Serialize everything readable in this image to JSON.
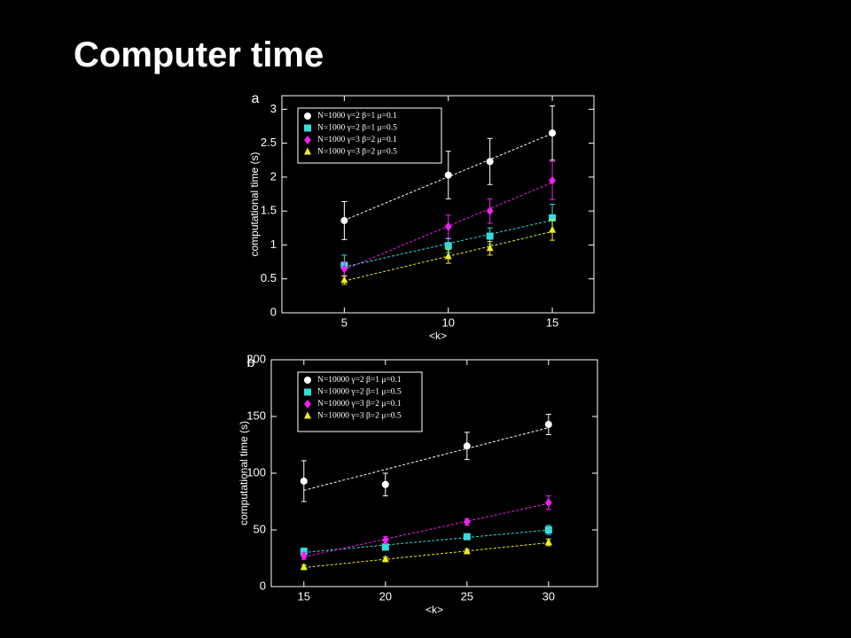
{
  "title": "Computer time",
  "chart_data": [
    {
      "type": "scatter",
      "panel": "a",
      "xlabel": "<k>",
      "ylabel": "computational time (s)",
      "xlim": [
        2,
        17
      ],
      "ylim": [
        0,
        3.2
      ],
      "xticks": [
        5,
        10,
        15
      ],
      "yticks": [
        0,
        0.5,
        1,
        1.5,
        2,
        2.5,
        3
      ],
      "trendline": true,
      "series": [
        {
          "name": "N=1000  γ=2  β=1  μ=0.1",
          "color": "#ffffff",
          "marker": "circle",
          "x": [
            5,
            10,
            12,
            15
          ],
          "values": [
            1.36,
            2.03,
            2.23,
            2.65
          ],
          "errors": [
            0.28,
            0.35,
            0.34,
            0.4
          ]
        },
        {
          "name": "N=1000  γ=2  β=1  μ=0.5",
          "color": "#33dddd",
          "marker": "square",
          "x": [
            5,
            10,
            12,
            15
          ],
          "values": [
            0.7,
            0.99,
            1.13,
            1.4
          ],
          "errors": [
            0.15,
            0.1,
            0.12,
            0.2
          ]
        },
        {
          "name": "N=1000  γ=3  β=2  μ=0.1",
          "color": "#ee22ee",
          "marker": "diamond",
          "x": [
            5,
            10,
            12,
            15
          ],
          "values": [
            0.65,
            1.27,
            1.5,
            1.95
          ],
          "errors": [
            0.1,
            0.17,
            0.18,
            0.28
          ]
        },
        {
          "name": "N=1000  γ=3  β=2  μ=0.5",
          "color": "#eeee22",
          "marker": "triangle",
          "x": [
            5,
            10,
            12,
            15
          ],
          "values": [
            0.48,
            0.83,
            0.95,
            1.22
          ],
          "errors": [
            0.06,
            0.1,
            0.1,
            0.15
          ]
        }
      ]
    },
    {
      "type": "scatter",
      "panel": "b",
      "xlabel": "<k>",
      "ylabel": "computational time (s)",
      "xlim": [
        13,
        33
      ],
      "ylim": [
        0,
        200
      ],
      "xticks": [
        15,
        20,
        25,
        30
      ],
      "yticks": [
        0,
        50,
        100,
        150,
        200
      ],
      "trendline": true,
      "series": [
        {
          "name": "N=10000  γ=2  β=1  μ=0.1",
          "color": "#ffffff",
          "marker": "circle",
          "x": [
            15,
            20,
            25,
            30
          ],
          "values": [
            93,
            90,
            124,
            143
          ],
          "errors": [
            18,
            10,
            12,
            9
          ]
        },
        {
          "name": "N=10000  γ=2  β=1  μ=0.5",
          "color": "#33dddd",
          "marker": "square",
          "x": [
            15,
            20,
            25,
            30
          ],
          "values": [
            31,
            35,
            44,
            50
          ],
          "errors": [
            3,
            3,
            2,
            4
          ]
        },
        {
          "name": "N=10000  γ=3  β=2  μ=0.1",
          "color": "#ee22ee",
          "marker": "diamond",
          "x": [
            15,
            20,
            25,
            30
          ],
          "values": [
            27,
            41,
            57,
            74
          ],
          "errors": [
            3,
            3,
            3,
            6
          ]
        },
        {
          "name": "N=10000  γ=3  β=2  μ=0.5",
          "color": "#eeee22",
          "marker": "triangle",
          "x": [
            15,
            20,
            25,
            30
          ],
          "values": [
            17,
            24,
            31,
            39
          ],
          "errors": [
            2,
            2,
            2,
            3
          ]
        }
      ]
    }
  ]
}
